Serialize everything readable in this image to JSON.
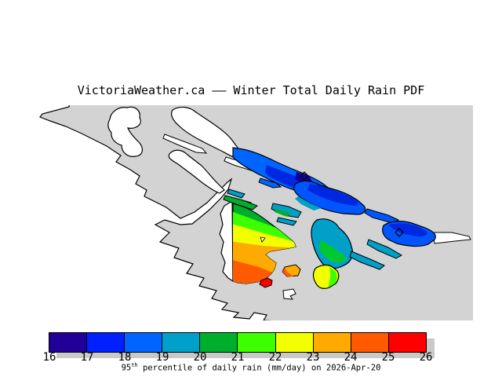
{
  "title": "VictoriaWeather.ca —— Winter Total Daily Rain PDF",
  "map": {
    "sea_color": "#d3d3d3",
    "land_color": "#ffffff",
    "coastline_color": "#000000",
    "marker_shape": "diamond",
    "marker_count": 2
  },
  "colorbar": {
    "range_min": 16,
    "range_max": 26,
    "tick_labels": [
      "16",
      "17",
      "18",
      "19",
      "20",
      "21",
      "22",
      "23",
      "24",
      "25",
      "26"
    ],
    "segment_colors": [
      "#200096",
      "#0020ff",
      "#0064ff",
      "#00a0c8",
      "#00ae2e",
      "#3cff00",
      "#f2ff00",
      "#ffaa00",
      "#ff5a00",
      "#ff0000"
    ],
    "shadow_color": "#c9c9c9",
    "caption": {
      "prefix": "95",
      "superscript": "th",
      "suffix": " percentile of daily rain (mm/day) on 2026-Apr-20"
    }
  }
}
